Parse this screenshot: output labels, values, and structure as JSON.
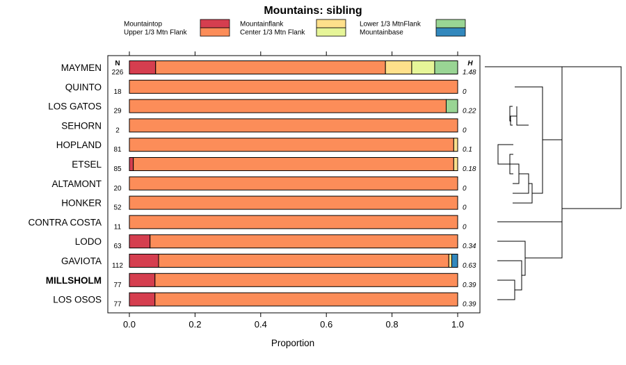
{
  "chart_data": {
    "type": "bar",
    "orientation": "horizontal",
    "stacked": true,
    "title": "Mountains: sibling",
    "xlabel": "Proportion",
    "xlim": [
      0,
      1
    ],
    "xticks": [
      "0.0",
      "0.2",
      "0.4",
      "0.6",
      "0.8",
      "1.0"
    ],
    "n_header": "N",
    "h_header": "H",
    "legend": [
      {
        "key": "mountaintop",
        "label": "Mountaintop",
        "color": "#d53e4f"
      },
      {
        "key": "upper",
        "label": "Upper 1/3 Mtn Flank",
        "color": "#fc8d59"
      },
      {
        "key": "mountainflank",
        "label": "Mountainflank",
        "color": "#fee08b"
      },
      {
        "key": "center",
        "label": "Center 1/3 Mtn Flank",
        "color": "#e6f598"
      },
      {
        "key": "lower",
        "label": "Lower 1/3 MtnFlank",
        "color": "#99d594"
      },
      {
        "key": "mountainbase",
        "label": "Mountainbase",
        "color": "#3288bd"
      }
    ],
    "categories": [
      {
        "name": "MAYMEN",
        "n": "226",
        "h": "1.48",
        "bold": false,
        "values": [
          0.08,
          0.7,
          0.08,
          0.07,
          0.07,
          0.0
        ]
      },
      {
        "name": "QUINTO",
        "n": "18",
        "h": "0",
        "bold": false,
        "values": [
          0.0,
          1.0,
          0.0,
          0.0,
          0.0,
          0.0
        ]
      },
      {
        "name": "LOS GATOS",
        "n": "29",
        "h": "0.22",
        "bold": false,
        "values": [
          0.0,
          0.965,
          0.0,
          0.0,
          0.035,
          0.0
        ]
      },
      {
        "name": "SEHORN",
        "n": "2",
        "h": "0",
        "bold": false,
        "values": [
          0.0,
          1.0,
          0.0,
          0.0,
          0.0,
          0.0
        ]
      },
      {
        "name": "HOPLAND",
        "n": "81",
        "h": "0.1",
        "bold": false,
        "values": [
          0.0,
          0.988,
          0.012,
          0.0,
          0.0,
          0.0
        ]
      },
      {
        "name": "ETSEL",
        "n": "85",
        "h": "0.18",
        "bold": false,
        "values": [
          0.012,
          0.976,
          0.012,
          0.0,
          0.0,
          0.0
        ]
      },
      {
        "name": "ALTAMONT",
        "n": "20",
        "h": "0",
        "bold": false,
        "values": [
          0.0,
          1.0,
          0.0,
          0.0,
          0.0,
          0.0
        ]
      },
      {
        "name": "HONKER",
        "n": "52",
        "h": "0",
        "bold": false,
        "values": [
          0.0,
          1.0,
          0.0,
          0.0,
          0.0,
          0.0
        ]
      },
      {
        "name": "CONTRA COSTA",
        "n": "11",
        "h": "0",
        "bold": false,
        "values": [
          0.0,
          1.0,
          0.0,
          0.0,
          0.0,
          0.0
        ]
      },
      {
        "name": "LODO",
        "n": "63",
        "h": "0.34",
        "bold": false,
        "values": [
          0.063,
          0.937,
          0.0,
          0.0,
          0.0,
          0.0
        ]
      },
      {
        "name": "GAVIOTA",
        "n": "112",
        "h": "0.63",
        "bold": false,
        "values": [
          0.089,
          0.884,
          0.009,
          0.0,
          0.0,
          0.018
        ]
      },
      {
        "name": "MILLSHOLM",
        "n": "77",
        "h": "0.39",
        "bold": true,
        "values": [
          0.078,
          0.922,
          0.0,
          0.0,
          0.0,
          0.0
        ]
      },
      {
        "name": "LOS OSOS",
        "n": "77",
        "h": "0.39",
        "bold": false,
        "values": [
          0.078,
          0.922,
          0.0,
          0.0,
          0.0,
          0.0
        ]
      }
    ]
  }
}
